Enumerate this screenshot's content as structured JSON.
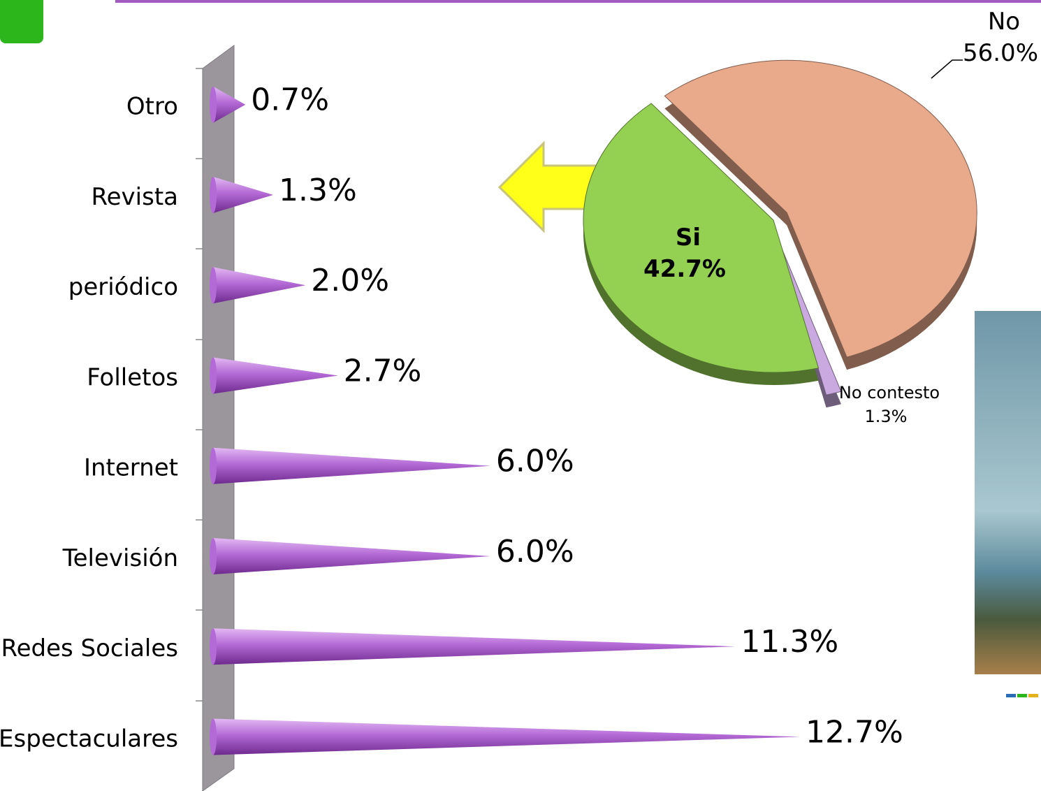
{
  "chart_data": [
    {
      "type": "cone-bar",
      "categories": [
        "Otro",
        "Revista",
        "periódico",
        "Folletos",
        "Internet",
        "Televisión",
        "Redes Sociales",
        "Espectaculares"
      ],
      "values": [
        0.7,
        1.3,
        2.0,
        2.7,
        6.0,
        6.0,
        11.3,
        12.7
      ],
      "value_labels": [
        "0.7%",
        "1.3%",
        "2.0%",
        "2.7%",
        "6.0%",
        "6.0%",
        "11.3%",
        "12.7%"
      ],
      "color": "#b46ad6"
    },
    {
      "type": "pie",
      "categories": [
        "No",
        "No contesto",
        "Si"
      ],
      "values": [
        56.0,
        1.3,
        42.7
      ],
      "value_labels": [
        "56.0%",
        "1.3%",
        "42.7%"
      ],
      "colors": [
        "#e9aa8c",
        "#c9a9e0",
        "#94d152"
      ]
    }
  ]
}
